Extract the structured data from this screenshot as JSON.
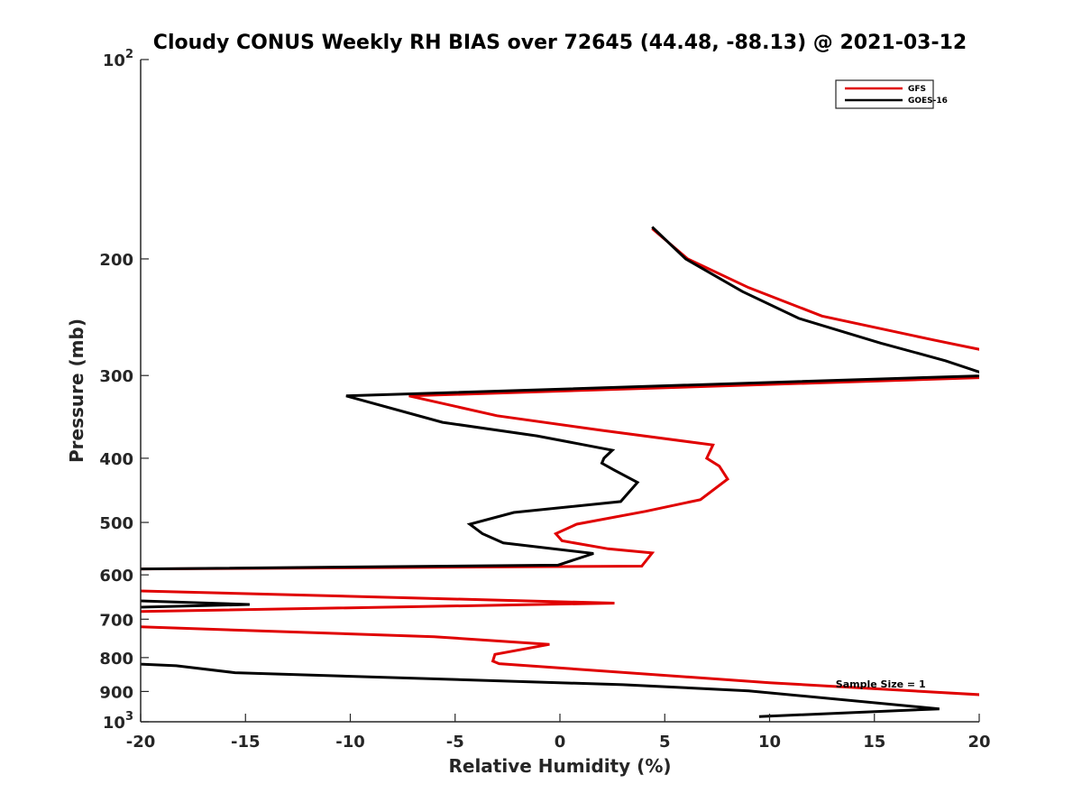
{
  "chart_data": {
    "type": "line",
    "title": "Cloudy CONUS Weekly RH BIAS over 72645 (44.48, -88.13) @ 2021-03-12",
    "xlabel": "Relative Humidity (%)",
    "ylabel": "Pressure (mb)",
    "xlim": [
      -20,
      20
    ],
    "ylim": [
      100,
      1000
    ],
    "y_scale": "log",
    "y_reversed": true,
    "grid": false,
    "legend_position": "top-right",
    "x_ticks": [
      -20,
      -15,
      -10,
      -5,
      0,
      5,
      10,
      15,
      20
    ],
    "x_tick_labels": [
      "-20",
      "-15",
      "-10",
      "-5",
      "0",
      "5",
      "10",
      "15",
      "20"
    ],
    "y_ticks": [
      100,
      200,
      300,
      400,
      500,
      600,
      700,
      800,
      900,
      1000
    ],
    "y_tick_labels": [
      {
        "base": "10",
        "exp": "2"
      },
      {
        "base": "200",
        "exp": ""
      },
      {
        "base": "300",
        "exp": ""
      },
      {
        "base": "400",
        "exp": ""
      },
      {
        "base": "500",
        "exp": ""
      },
      {
        "base": "600",
        "exp": ""
      },
      {
        "base": "700",
        "exp": ""
      },
      {
        "base": "800",
        "exp": ""
      },
      {
        "base": "900",
        "exp": ""
      },
      {
        "base": "10",
        "exp": "3"
      }
    ],
    "series": [
      {
        "name": "GFS",
        "color": "#e00000",
        "points": [
          [
            4.4,
            180
          ],
          [
            6.1,
            200
          ],
          [
            9.0,
            221
          ],
          [
            12.5,
            244
          ],
          [
            17.8,
            265
          ],
          [
            20.5,
            276
          ],
          [
            20.5,
            302
          ],
          [
            -7.2,
            322
          ],
          [
            -3.0,
            345
          ],
          [
            2.0,
            363
          ],
          [
            7.3,
            382
          ],
          [
            7.0,
            400
          ],
          [
            7.6,
            411
          ],
          [
            8.0,
            430
          ],
          [
            6.7,
            462
          ],
          [
            4.1,
            481
          ],
          [
            0.8,
            503
          ],
          [
            -0.2,
            520
          ],
          [
            0.1,
            533
          ],
          [
            2.3,
            548
          ],
          [
            4.4,
            556
          ],
          [
            3.9,
            582
          ],
          [
            -20.5,
            588
          ],
          [
            -20.5,
            634
          ],
          [
            2.6,
            662
          ],
          [
            -20.5,
            682
          ],
          [
            -20.5,
            718
          ],
          [
            -6.0,
            744
          ],
          [
            -0.5,
            764
          ],
          [
            -3.1,
            791
          ],
          [
            -3.2,
            810
          ],
          [
            -2.9,
            817
          ],
          [
            10.0,
            873
          ],
          [
            20.5,
            912
          ]
        ]
      },
      {
        "name": "GOES-16",
        "color": "#000000",
        "points": [
          [
            4.4,
            179
          ],
          [
            6.0,
            200
          ],
          [
            8.7,
            224
          ],
          [
            11.4,
            246
          ],
          [
            15.3,
            268
          ],
          [
            18.4,
            285
          ],
          [
            20.5,
            300
          ],
          [
            -10.2,
            322
          ],
          [
            -5.6,
            353
          ],
          [
            -1.1,
            370
          ],
          [
            2.5,
            389
          ],
          [
            2.1,
            400
          ],
          [
            2.0,
            407
          ],
          [
            2.6,
            417
          ],
          [
            3.7,
            435
          ],
          [
            2.9,
            465
          ],
          [
            -2.2,
            483
          ],
          [
            -4.3,
            503
          ],
          [
            -3.7,
            520
          ],
          [
            -2.7,
            537
          ],
          [
            1.6,
            557
          ],
          [
            -0.1,
            580
          ],
          [
            -20.5,
            588
          ],
          [
            -20.5,
            656
          ],
          [
            -14.8,
            665
          ],
          [
            -20.5,
            672
          ],
          [
            -20.5,
            817
          ],
          [
            -18.3,
            823
          ],
          [
            -15.5,
            843
          ],
          [
            3.0,
            879
          ],
          [
            9.0,
            898
          ],
          [
            18.1,
            956
          ],
          [
            9.5,
            982
          ]
        ]
      }
    ],
    "annotations": [
      {
        "text": "Sample Size = 1",
        "x": 15.3,
        "y": 905
      }
    ]
  }
}
